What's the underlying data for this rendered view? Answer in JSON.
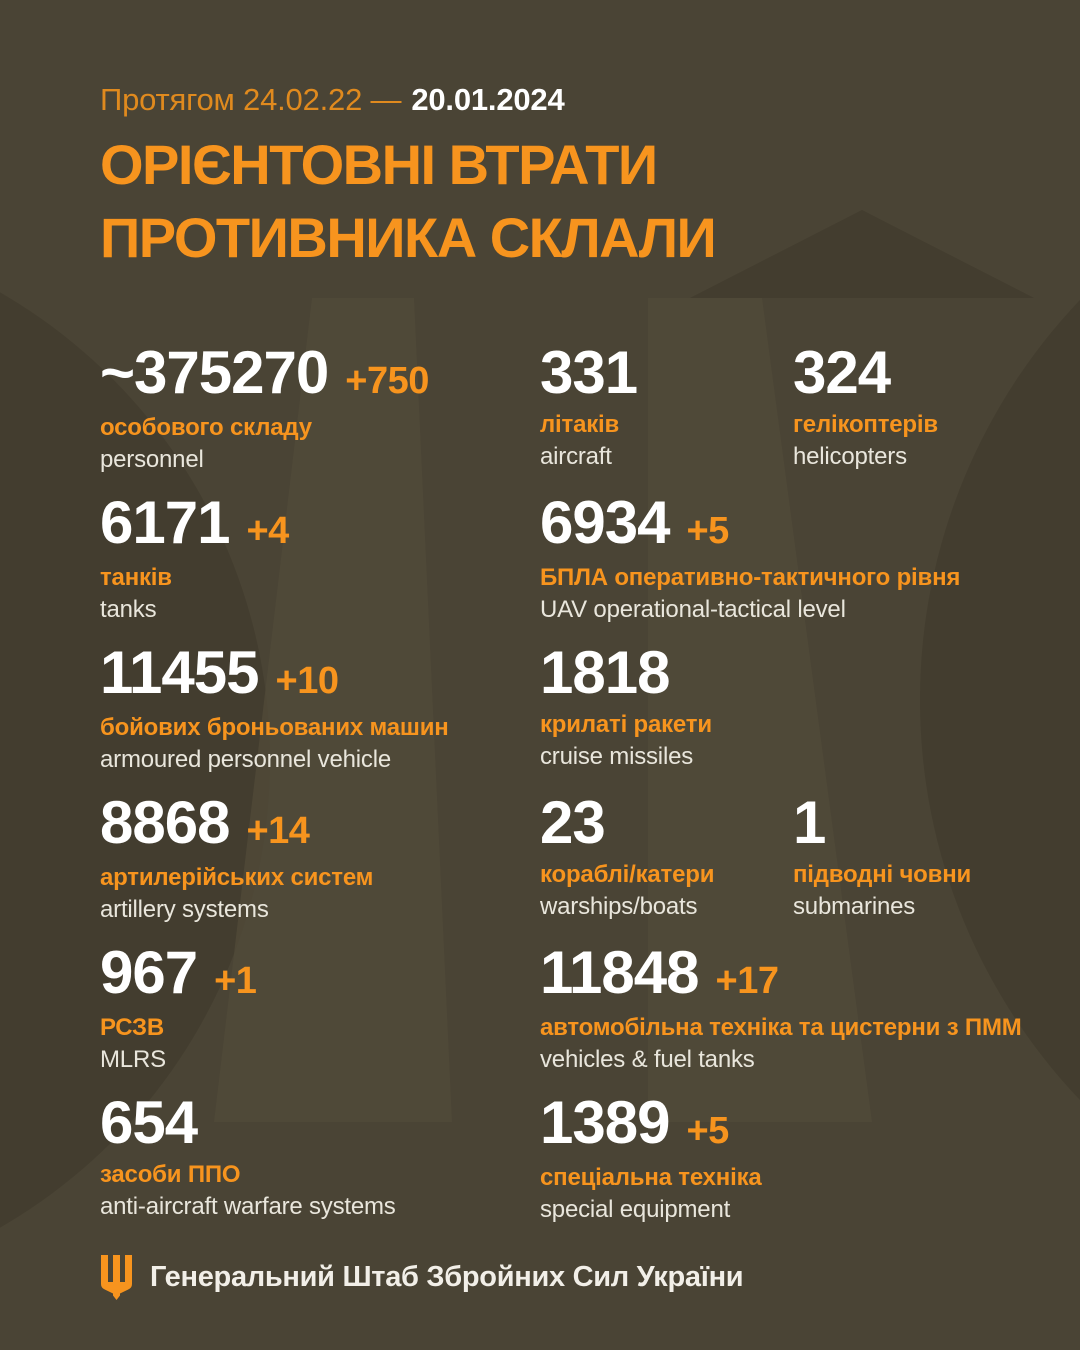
{
  "theme": {
    "background": "#4A4435",
    "accent_orange": "#F7941E",
    "header_orange": "#E08A1E",
    "number_white": "#FFFFFF",
    "label_english_color": "#E9E6DC",
    "watermark_dark": "#433D2F",
    "watermark_light": "#514B39"
  },
  "header": {
    "period_label": "Протягом 24.02.22 —",
    "date": "20.01.2024",
    "title_line1": "ОРІЄНТОВНІ ВТРАТИ",
    "title_line2": "ПРОТИВНИКА СКЛАЛИ"
  },
  "stats": [
    {
      "id": "personnel",
      "value": "~375270",
      "delta": "+750",
      "label_uk": "особового складу",
      "label_en": "personnel",
      "col": 0,
      "row": 0
    },
    {
      "id": "aircraft",
      "value": "331",
      "delta": "",
      "label_uk": "літаків",
      "label_en": "aircraft",
      "col": 1,
      "row": 0
    },
    {
      "id": "helicopters",
      "value": "324",
      "delta": "",
      "label_uk": "гелікоптерів",
      "label_en": "helicopters",
      "col": 2,
      "row": 0
    },
    {
      "id": "tanks",
      "value": "6171",
      "delta": "+4",
      "label_uk": "танків",
      "label_en": "tanks",
      "col": 0,
      "row": 1
    },
    {
      "id": "uav",
      "value": "6934",
      "delta": "+5",
      "label_uk": "БПЛА оперативно-тактичного рівня",
      "label_en": "UAV operational-tactical level",
      "col": 1,
      "row": 1
    },
    {
      "id": "apv",
      "value": "11455",
      "delta": "+10",
      "label_uk": "бойових броньованих машин",
      "label_en": "armoured personnel vehicle",
      "col": 0,
      "row": 2
    },
    {
      "id": "cruise-missiles",
      "value": "1818",
      "delta": "",
      "label_uk": "крилаті ракети",
      "label_en": "cruise missiles",
      "col": 1,
      "row": 2
    },
    {
      "id": "artillery",
      "value": "8868",
      "delta": "+14",
      "label_uk": "артилерійських систем",
      "label_en": "artillery systems",
      "col": 0,
      "row": 3
    },
    {
      "id": "warships",
      "value": "23",
      "delta": "",
      "label_uk": "кораблі/катери",
      "label_en": "warships/boats",
      "col": 1,
      "row": 3
    },
    {
      "id": "submarines",
      "value": "1",
      "delta": "",
      "label_uk": "підводні човни",
      "label_en": "submarines",
      "col": 2,
      "row": 3
    },
    {
      "id": "mlrs",
      "value": "967",
      "delta": "+1",
      "label_uk": "РСЗВ",
      "label_en": "MLRS",
      "col": 0,
      "row": 4
    },
    {
      "id": "vehicles-fuel-tanks",
      "value": "11848",
      "delta": "+17",
      "label_uk": "автомобільна техніка та цистерни з ПММ",
      "label_en": "vehicles & fuel tanks",
      "col": 1,
      "row": 4
    },
    {
      "id": "anti-aircraft",
      "value": "654",
      "delta": "",
      "label_uk": "засоби ППО",
      "label_en": "anti-aircraft warfare systems",
      "col": 0,
      "row": 5
    },
    {
      "id": "special-equipment",
      "value": "1389",
      "delta": "+5",
      "label_uk": "спеціальна техніка",
      "label_en": "special equipment",
      "col": 1,
      "row": 5
    }
  ],
  "footer": {
    "source": "Генеральний Штаб Збройних Сил України"
  },
  "chart_data": {
    "type": "table",
    "title": "Орієнтовні втрати противника склали",
    "period": "24.02.22 — 20.01.2024",
    "categories": [
      "personnel",
      "aircraft",
      "helicopters",
      "tanks",
      "UAV operational-tactical level",
      "armoured personnel vehicle",
      "cruise missiles",
      "artillery systems",
      "warships/boats",
      "submarines",
      "MLRS",
      "vehicles & fuel tanks",
      "anti-aircraft warfare systems",
      "special equipment"
    ],
    "values": [
      375270,
      331,
      324,
      6171,
      6934,
      11455,
      1818,
      8868,
      23,
      1,
      967,
      11848,
      654,
      1389
    ],
    "daily_increase": [
      750,
      0,
      0,
      4,
      5,
      10,
      0,
      14,
      0,
      0,
      1,
      17,
      0,
      5
    ],
    "approximate_flags": [
      true,
      false,
      false,
      false,
      false,
      false,
      false,
      false,
      false,
      false,
      false,
      false,
      false,
      false
    ]
  }
}
